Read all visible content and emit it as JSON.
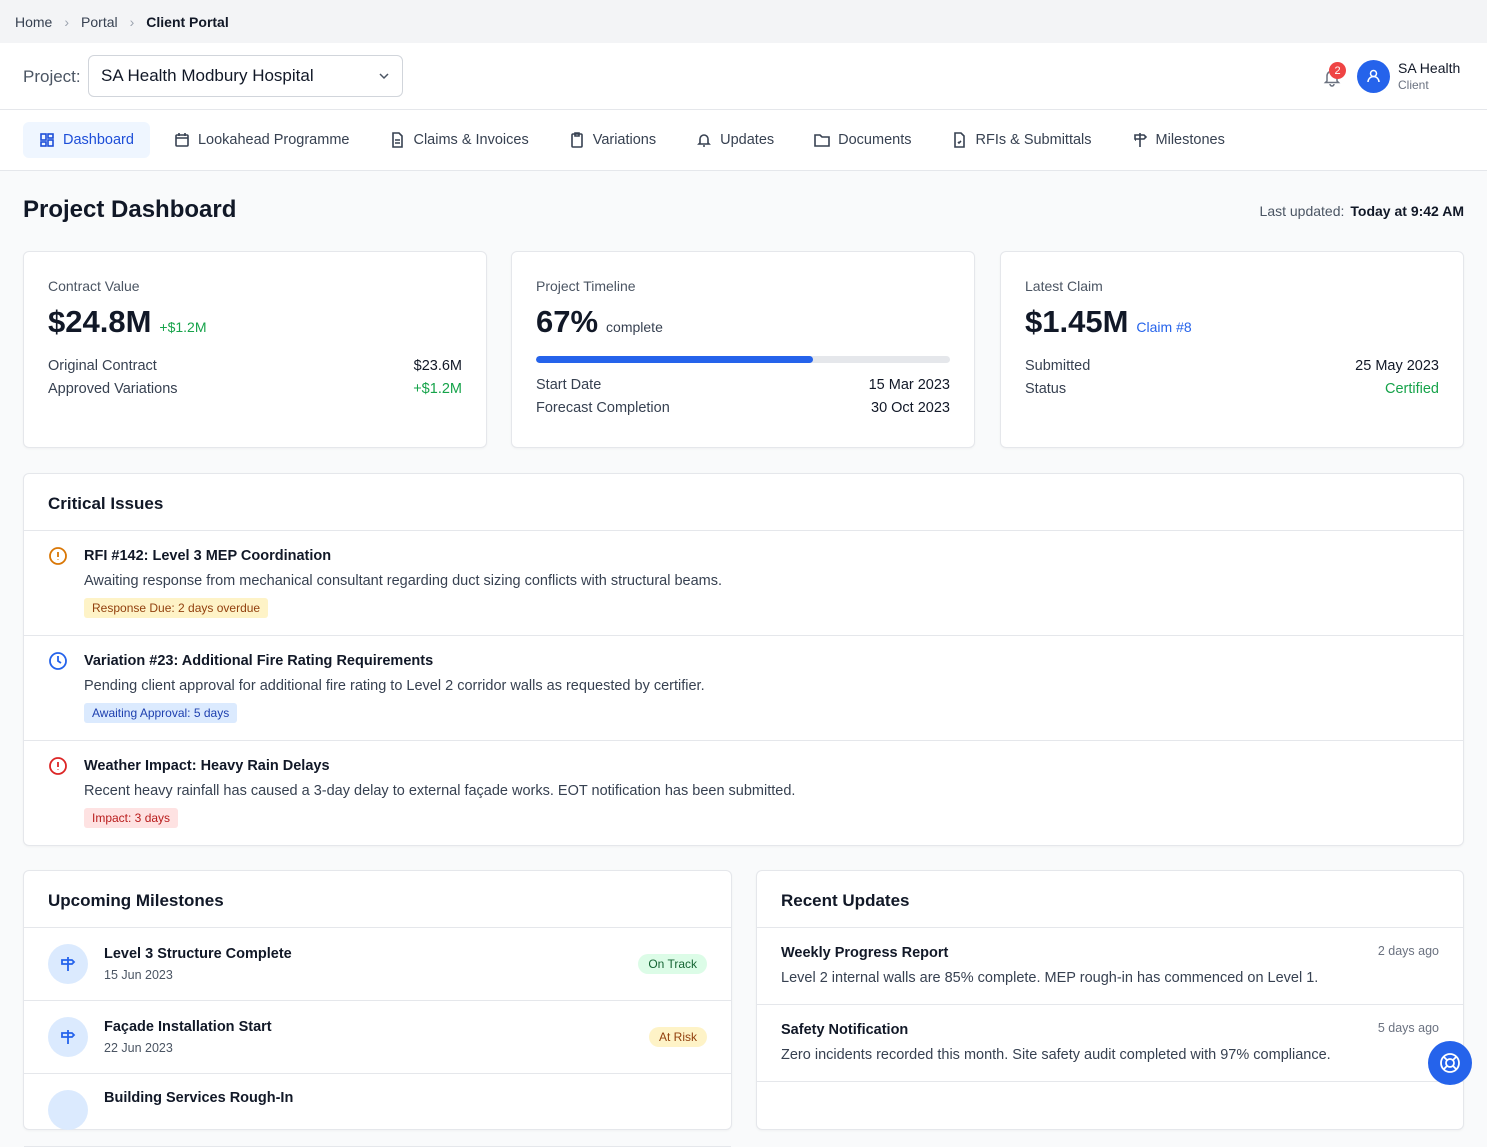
{
  "breadcrumb": [
    "Home",
    "Portal",
    "Client Portal"
  ],
  "project": {
    "label": "Project:",
    "selected": "SA Health Modbury Hospital"
  },
  "notification_count": "2",
  "user": {
    "name": "SA Health",
    "role": "Client"
  },
  "tabs": [
    "Dashboard",
    "Lookahead Programme",
    "Claims & Invoices",
    "Variations",
    "Updates",
    "Documents",
    "RFIs & Submittals",
    "Milestones"
  ],
  "page": {
    "title": "Project Dashboard",
    "last_updated_label": "Last updated:",
    "last_updated": "Today at 9:42 AM"
  },
  "cards": [
    {
      "label": "Contract Value",
      "value": "$24.8M",
      "note": "+$1.2M",
      "rows": [
        [
          "Original Contract",
          "$23.6M"
        ],
        [
          "Approved Variations",
          "+$1.2M"
        ]
      ]
    },
    {
      "label": "Project Timeline",
      "progress": {
        "value": 67,
        "label": "67%"
      },
      "note": "complete",
      "rows": [
        [
          "Start Date",
          "15 Mar 2023"
        ],
        [
          "Forecast Completion",
          "30 Oct 2023"
        ]
      ]
    },
    {
      "label": "Latest Claim",
      "value": "$1.45M",
      "note": "Claim #8",
      "rows": [
        [
          "Submitted",
          "25 May 2023"
        ],
        [
          "Status",
          "Certified"
        ]
      ]
    }
  ],
  "critical_issues": {
    "title": "Critical Issues",
    "items": [
      {
        "title": "RFI #142: Level 3 MEP Coordination",
        "description": "Awaiting response from mechanical consultant regarding duct sizing conflicts with structural beams.",
        "tag": "Response Due: 2 days overdue"
      },
      {
        "title": "Variation #23: Additional Fire Rating Requirements",
        "description": "Pending client approval for additional fire rating to Level 2 corridor walls as requested by certifier.",
        "tag": "Awaiting Approval: 5 days"
      },
      {
        "title": "Weather Impact: Heavy Rain Delays",
        "description": "Recent heavy rainfall has caused a 3-day delay to external façade works. EOT notification has been submitted.",
        "tag": "Impact: 3 days"
      }
    ]
  },
  "milestones": {
    "title": "Upcoming Milestones",
    "items": [
      {
        "title": "Level 3 Structure Complete",
        "date": "15 Jun 2023",
        "status": "On Track"
      },
      {
        "title": "Façade Installation Start",
        "date": "22 Jun 2023",
        "status": "At Risk"
      },
      {
        "title": "Building Services Rough-In"
      }
    ]
  },
  "updates": {
    "title": "Recent Updates",
    "items": [
      {
        "title": "Weekly Progress Report",
        "time": "2 days ago",
        "description": "Level 2 internal walls are 85% complete. MEP rough-in has commenced on Level 1."
      },
      {
        "title": "Safety Notification",
        "time": "5 days ago",
        "description": "Zero incidents recorded this month. Site safety audit completed with 97% compliance."
      }
    ]
  }
}
